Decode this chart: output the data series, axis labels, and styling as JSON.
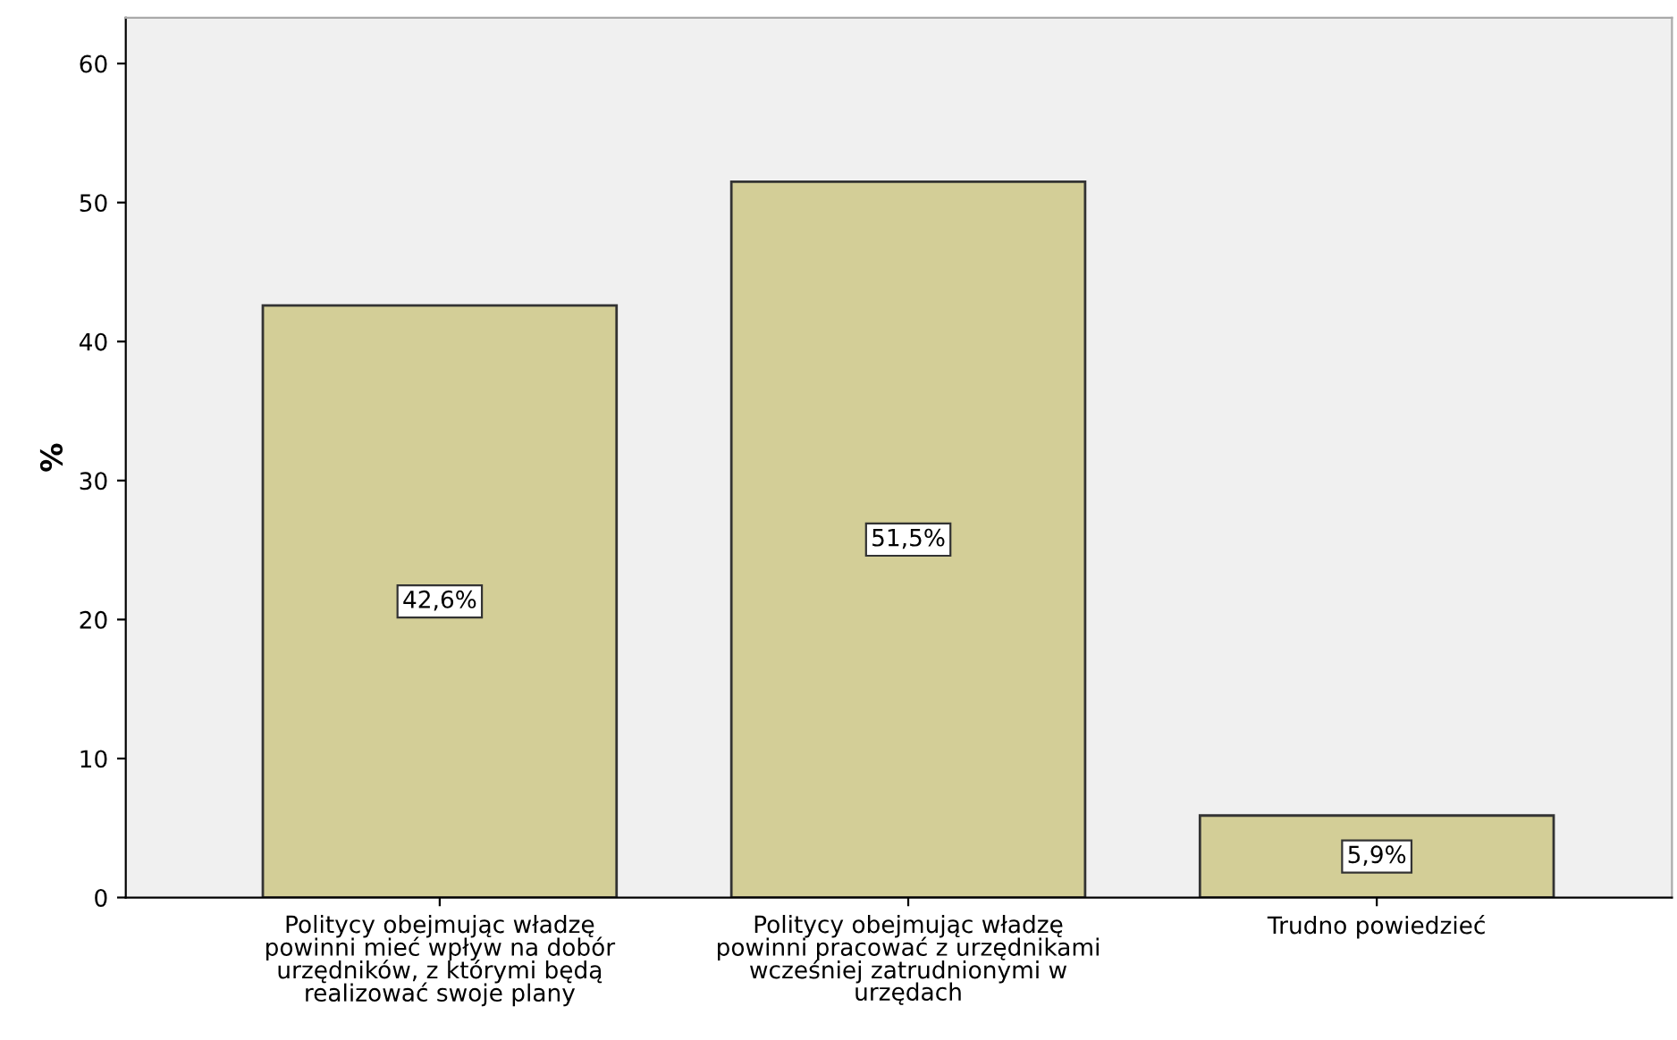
{
  "chart_data": {
    "type": "bar",
    "ylabel": "%",
    "categories": [
      "Politycy obejmując władzę\npowinni mieć wpływ na dobór\nurzędników, z którymi będą\nrealizować swoje plany",
      "Politycy obejmując władzę\npowinni pracować z urzędnikami\nwcześniej zatrudnionymi w\nurzędach",
      "Trudno powiedzieć"
    ],
    "values": [
      42.6,
      51.5,
      5.9
    ],
    "value_labels": [
      "42,6%",
      "51,5%",
      "5,9%"
    ],
    "color": "#d3ce97",
    "ylim": [
      0,
      63.3
    ],
    "yticks": [
      0,
      10,
      20,
      30,
      40,
      50,
      60
    ],
    "grid": false
  }
}
